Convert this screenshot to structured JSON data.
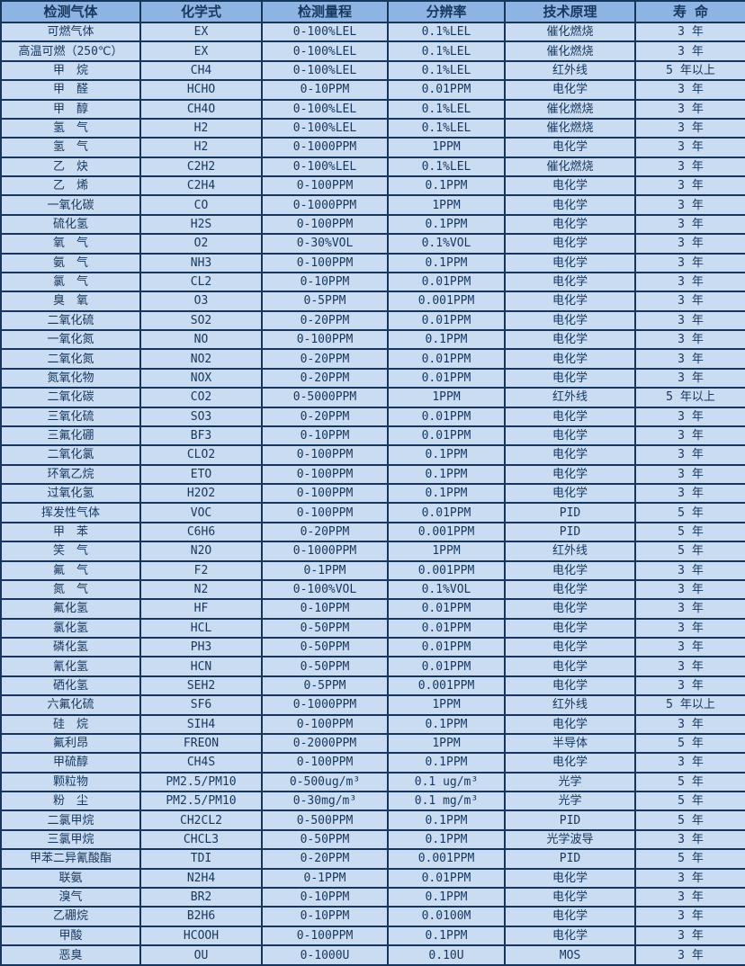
{
  "colors": {
    "header_bg": "#8DB4E2",
    "row_bg": "#C9DCF2",
    "border": "#16365C",
    "text": "#17375E"
  },
  "table": {
    "columns": [
      "检测气体",
      "化学式",
      "检测量程",
      "分辨率",
      "技术原理",
      "寿 命"
    ],
    "rows": [
      [
        "可燃气体",
        "EX",
        "0-100%LEL",
        "0.1%LEL",
        "催化燃烧",
        "3 年"
      ],
      [
        "高温可燃（250℃）",
        "EX",
        "0-100%LEL",
        "0.1%LEL",
        "催化燃烧",
        "3 年"
      ],
      [
        "甲　烷",
        "CH4",
        "0-100%LEL",
        "0.1%LEL",
        "红外线",
        "5 年以上"
      ],
      [
        "甲　醛",
        "HCHO",
        "0-10PPM",
        "0.01PPM",
        "电化学",
        "3 年"
      ],
      [
        "甲　醇",
        "CH4O",
        "0-100%LEL",
        "0.1%LEL",
        "催化燃烧",
        "3 年"
      ],
      [
        "氢　气",
        "H2",
        "0-100%LEL",
        "0.1%LEL",
        "催化燃烧",
        "3 年"
      ],
      [
        "氢　气",
        "H2",
        "0-1000PPM",
        "1PPM",
        "电化学",
        "3 年"
      ],
      [
        "乙　炔",
        "C2H2",
        "0-100%LEL",
        "0.1%LEL",
        "催化燃烧",
        "3 年"
      ],
      [
        "乙　烯",
        "C2H4",
        "0-100PPM",
        "0.1PPM",
        "电化学",
        "3 年"
      ],
      [
        "一氧化碳",
        "CO",
        "0-1000PPM",
        "1PPM",
        "电化学",
        "3 年"
      ],
      [
        "硫化氢",
        "H2S",
        "0-100PPM",
        "0.1PPM",
        "电化学",
        "3 年"
      ],
      [
        "氧　气",
        "O2",
        "0-30%VOL",
        "0.1%VOL",
        "电化学",
        "3 年"
      ],
      [
        "氨　气",
        "NH3",
        "0-100PPM",
        "0.1PPM",
        "电化学",
        "3 年"
      ],
      [
        "氯　气",
        "CL2",
        "0-10PPM",
        "0.01PPM",
        "电化学",
        "3 年"
      ],
      [
        "臭　氧",
        "O3",
        "0-5PPM",
        "0.001PPM",
        "电化学",
        "3 年"
      ],
      [
        "二氧化硫",
        "SO2",
        "0-20PPM",
        "0.01PPM",
        "电化学",
        "3 年"
      ],
      [
        "一氧化氮",
        "NO",
        "0-100PPM",
        "0.1PPM",
        "电化学",
        "3 年"
      ],
      [
        "二氧化氮",
        "NO2",
        "0-20PPM",
        "0.01PPM",
        "电化学",
        "3 年"
      ],
      [
        "氮氧化物",
        "NOX",
        "0-20PPM",
        "0.01PPM",
        "电化学",
        "3 年"
      ],
      [
        "二氧化碳",
        "CO2",
        "0-5000PPM",
        "1PPM",
        "红外线",
        "5 年以上"
      ],
      [
        "三氧化硫",
        "SO3",
        "0-20PPM",
        "0.01PPM",
        "电化学",
        "3 年"
      ],
      [
        "三氟化硼",
        "BF3",
        "0-10PPM",
        "0.01PPM",
        "电化学",
        "3 年"
      ],
      [
        "二氧化氯",
        "CLO2",
        "0-100PPM",
        "0.1PPM",
        "电化学",
        "3 年"
      ],
      [
        "环氧乙烷",
        "ETO",
        "0-100PPM",
        "0.1PPM",
        "电化学",
        "3 年"
      ],
      [
        "过氧化氢",
        "H2O2",
        "0-100PPM",
        "0.1PPM",
        "电化学",
        "3 年"
      ],
      [
        "挥发性气体",
        "VOC",
        "0-100PPM",
        "0.01PPM",
        "PID",
        "5 年"
      ],
      [
        "甲　苯",
        "C6H6",
        "0-20PPM",
        "0.001PPM",
        "PID",
        "5 年"
      ],
      [
        "笑　气",
        "N2O",
        "0-1000PPM",
        "1PPM",
        "红外线",
        "5 年"
      ],
      [
        "氟　气",
        "F2",
        "0-1PPM",
        "0.001PPM",
        "电化学",
        "3 年"
      ],
      [
        "氮　气",
        "N2",
        "0-100%VOL",
        "0.1%VOL",
        "电化学",
        "3 年"
      ],
      [
        "氟化氢",
        "HF",
        "0-10PPM",
        "0.01PPM",
        "电化学",
        "3 年"
      ],
      [
        "氯化氢",
        "HCL",
        "0-50PPM",
        "0.01PPM",
        "电化学",
        "3 年"
      ],
      [
        "磷化氢",
        "PH3",
        "0-50PPM",
        "0.01PPM",
        "电化学",
        "3 年"
      ],
      [
        "氰化氢",
        "HCN",
        "0-50PPM",
        "0.01PPM",
        "电化学",
        "3 年"
      ],
      [
        "硒化氢",
        "SEH2",
        "0-5PPM",
        "0.001PPM",
        "电化学",
        "3 年"
      ],
      [
        "六氟化硫",
        "SF6",
        "0-1000PPM",
        "1PPM",
        "红外线",
        "5 年以上"
      ],
      [
        "硅　烷",
        "SIH4",
        "0-100PPM",
        "0.1PPM",
        "电化学",
        "3 年"
      ],
      [
        "氟利昂",
        "FREON",
        "0-2000PPM",
        "1PPM",
        "半导体",
        "5 年"
      ],
      [
        "甲硫醇",
        "CH4S",
        "0-100PPM",
        "0.1PPM",
        "电化学",
        "3 年"
      ],
      [
        "颗粒物",
        "PM2.5/PM10",
        "0-500ug/m³",
        "0.1 ug/m³",
        "光学",
        "5 年"
      ],
      [
        "粉　尘",
        "PM2.5/PM10",
        "0-30mg/m³",
        "0.1 mg/m³",
        "光学",
        "5 年"
      ],
      [
        "二氯甲烷",
        "CH2CL2",
        "0-500PPM",
        "0.1PPM",
        "PID",
        "5 年"
      ],
      [
        "三氯甲烷",
        "CHCL3",
        "0-50PPM",
        "0.1PPM",
        "光学波导",
        "3 年"
      ],
      [
        "甲苯二异氰酸酯",
        "TDI",
        "0-20PPM",
        "0.001PPM",
        "PID",
        "5 年"
      ],
      [
        "联氨",
        "N2H4",
        "0-1PPM",
        "0.01PPM",
        "电化学",
        "3 年"
      ],
      [
        "溴气",
        "BR2",
        "0-10PPM",
        "0.1PPM",
        "电化学",
        "3 年"
      ],
      [
        "乙硼烷",
        "B2H6",
        "0-10PPM",
        "0.0100M",
        "电化学",
        "3 年"
      ],
      [
        "甲酸",
        "HCOOH",
        "0-100PPM",
        "0.1PPM",
        "电化学",
        "3 年"
      ],
      [
        "恶臭",
        "OU",
        "0-1000U",
        "0.10U",
        "MOS",
        "3 年"
      ]
    ]
  }
}
